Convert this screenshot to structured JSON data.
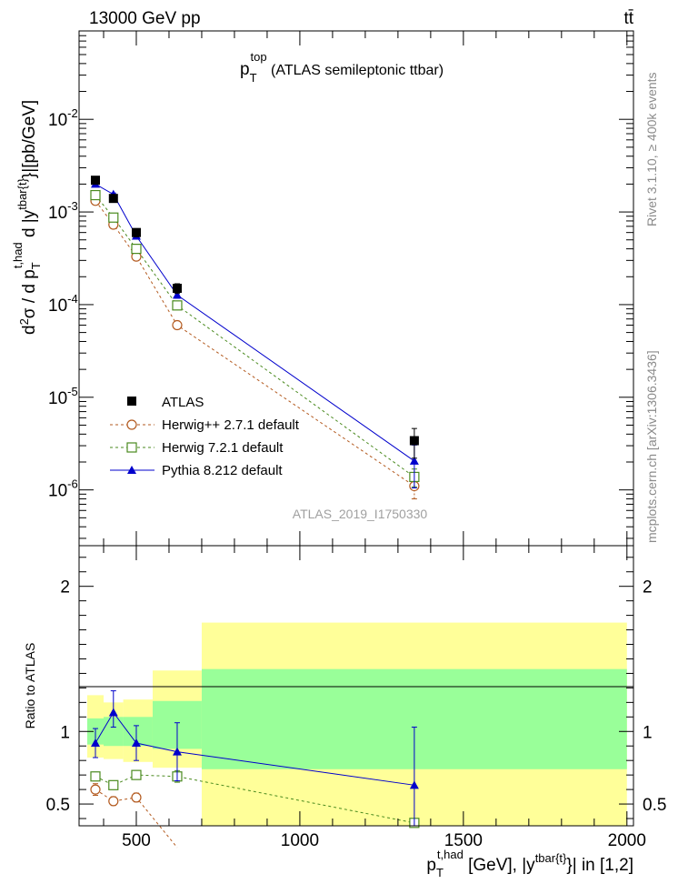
{
  "header": {
    "beam": "13000 GeV pp",
    "process": "tt̄"
  },
  "side_labels": {
    "rivet": "Rivet 3.1.10, ≥ 400k events",
    "mcplots": "mcplots.cern.ch [arXiv:1306.3436]"
  },
  "chart_data": [
    {
      "type": "line",
      "title_main": "p",
      "title_sub": "T",
      "title_sup": "top",
      "title_rest": " (ATLAS semileptonic ttbar)",
      "watermark": "ATLAS_2019_I1750330",
      "yscale": "log",
      "ylim": [
        2.5e-07,
        0.09
      ],
      "xlim": [
        325,
        2020
      ],
      "ylabel": "d²σ / d p_T^{t,had} d |y^{tbar{t}}|[pb/GeV]",
      "ytick_labels": [
        {
          "base": "10",
          "exp": "-6",
          "value": 1e-06
        },
        {
          "base": "10",
          "exp": "-5",
          "value": 1e-05
        },
        {
          "base": "10",
          "exp": "-4",
          "value": 0.0001
        },
        {
          "base": "10",
          "exp": "-3",
          "value": 0.001
        },
        {
          "base": "10",
          "exp": "-2",
          "value": 0.01
        }
      ],
      "legend_position": "bottom-left",
      "series": [
        {
          "name": "ATLAS",
          "marker": "filled-square",
          "color": "#000000",
          "x": [
            375,
            430,
            500,
            625,
            1350
          ],
          "y": [
            0.0022,
            0.0014,
            0.0006,
            0.00015,
            3.4e-06
          ],
          "yerr_low": [
            0.0002,
            0.00013,
            6e-05,
            1.8e-05,
            1.2e-06
          ],
          "yerr_high": [
            0.0002,
            0.00013,
            6e-05,
            1.8e-05,
            1.2e-06
          ]
        },
        {
          "name": "Herwig++ 2.7.1 default",
          "marker": "open-circle",
          "color": "#b35a1f",
          "dash": "3,3",
          "x": [
            375,
            430,
            500,
            625,
            1350
          ],
          "y": [
            0.00132,
            0.00073,
            0.00033,
            6e-05,
            1.1e-06
          ],
          "yerr_low": [
            4e-05,
            2e-05,
            1e-05,
            3e-06,
            3e-07
          ],
          "yerr_high": [
            4e-05,
            2e-05,
            1e-05,
            3e-06,
            3e-07
          ]
        },
        {
          "name": "Herwig 7.2.1 default",
          "marker": "open-square",
          "color": "#4a8a1f",
          "dash": "3,3",
          "x": [
            375,
            430,
            500,
            625,
            1350
          ],
          "y": [
            0.00152,
            0.00087,
            0.0004,
            9.8e-05,
            1.38e-06
          ],
          "yerr_low": [
            4e-05,
            2e-05,
            1e-05,
            6e-06,
            3e-07
          ],
          "yerr_high": [
            4e-05,
            2e-05,
            1e-05,
            6e-06,
            3e-07
          ]
        },
        {
          "name": "Pythia 8.212 default",
          "marker": "filled-triangle",
          "color": "#0000cc",
          "dash": "",
          "x": [
            375,
            430,
            500,
            625,
            1350
          ],
          "y": [
            0.002,
            0.00155,
            0.00055,
            0.000127,
            2.05e-06
          ],
          "yerr_low": [
            6e-05,
            5e-05,
            3e-05,
            1e-05,
            1e-06
          ],
          "yerr_high": [
            6e-05,
            5e-05,
            3e-05,
            1e-05,
            1e-06
          ]
        }
      ]
    },
    {
      "type": "line",
      "ylabel": "Ratio to ATLAS",
      "ylim": [
        0.35,
        2.28
      ],
      "xlim": [
        325,
        2020
      ],
      "xlabel": "p_T^{t,had} [GeV], |y^{tbar{t}}| in [1,2]",
      "xticks": [
        500,
        1000,
        1500,
        2000
      ],
      "xtick_labels": [
        "500",
        "1000",
        "1500",
        "2000"
      ],
      "yticks": [
        0.5,
        1,
        2
      ],
      "ytick_labels": [
        "0.5",
        "1",
        "2"
      ],
      "bands": [
        {
          "x0": 350,
          "x1": 400,
          "inner": [
            0.91,
            1.09
          ],
          "outer": [
            0.82,
            1.25
          ]
        },
        {
          "x0": 400,
          "x1": 460,
          "inner": [
            0.9,
            1.1
          ],
          "outer": [
            0.81,
            1.2
          ]
        },
        {
          "x0": 460,
          "x1": 550,
          "inner": [
            0.9,
            1.1
          ],
          "outer": [
            0.79,
            1.22
          ]
        },
        {
          "x0": 550,
          "x1": 700,
          "inner": [
            0.88,
            1.21
          ],
          "outer": [
            0.75,
            1.42
          ]
        },
        {
          "x0": 700,
          "x1": 2000,
          "inner": [
            0.74,
            1.43
          ],
          "outer": [
            0.35,
            1.75
          ]
        }
      ],
      "series": [
        {
          "name": "Herwig++ 2.7.1 default",
          "marker": "open-circle",
          "color": "#b35a1f",
          "dash": "3,3",
          "x": [
            375,
            430,
            500,
            625
          ],
          "y": [
            0.6,
            0.52,
            0.545,
            0.2
          ],
          "yerr_low": [
            0.04,
            0.03,
            0.03,
            0.0
          ],
          "yerr_high": [
            0.04,
            0.03,
            0.03,
            0.0
          ]
        },
        {
          "name": "Herwig 7.2.1 default",
          "marker": "open-square",
          "color": "#4a8a1f",
          "dash": "3,3",
          "x": [
            375,
            430,
            500,
            625,
            1350
          ],
          "y": [
            0.69,
            0.63,
            0.7,
            0.69,
            0.37
          ],
          "yerr_low": [
            0.03,
            0.03,
            0.03,
            0.04,
            0.0
          ],
          "yerr_high": [
            0.03,
            0.03,
            0.03,
            0.04,
            0.0
          ]
        },
        {
          "name": "Pythia 8.212 default",
          "marker": "filled-triangle",
          "color": "#0000cc",
          "dash": "",
          "x": [
            375,
            430,
            500,
            625,
            1350
          ],
          "y": [
            0.92,
            1.13,
            0.92,
            0.86,
            0.63
          ],
          "yerr_low": [
            0.1,
            0.1,
            0.12,
            0.2,
            0.4
          ],
          "yerr_high": [
            0.1,
            0.15,
            0.12,
            0.2,
            0.4
          ]
        }
      ]
    }
  ]
}
